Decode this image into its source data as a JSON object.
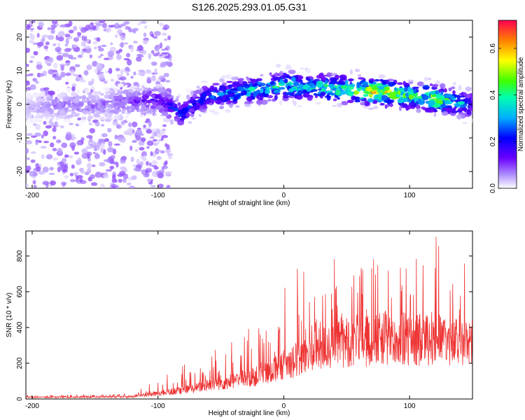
{
  "title": "S126.2025.293.01.05.G31",
  "chart_data": [
    {
      "type": "heatmap",
      "name": "spectrogram",
      "xlabel": "Height of straight line (km)",
      "ylabel": "Frequency (Hz)",
      "xlim": [
        -205,
        150
      ],
      "ylim": [
        -25,
        25
      ],
      "xticks": [
        -200,
        -100,
        0,
        100
      ],
      "yticks": [
        -20,
        -10,
        0,
        10,
        20
      ],
      "colorbar": {
        "label": "Normalized spectral amplitude",
        "range": [
          0.0,
          0.72
        ],
        "ticks": [
          0.0,
          0.2,
          0.4,
          0.6
        ]
      },
      "ridge": {
        "x": [
          -200,
          -180,
          -160,
          -140,
          -120,
          -100,
          -90,
          -80,
          -70,
          -60,
          -50,
          -40,
          -30,
          -20,
          -10,
          0,
          10,
          20,
          30,
          40,
          50,
          60,
          70,
          80,
          90,
          100,
          110,
          120,
          130,
          140,
          150
        ],
        "freq": [
          -1.0,
          -0.5,
          -0.5,
          0.0,
          1.0,
          1.5,
          -1.0,
          -3.0,
          0.5,
          2.5,
          3.0,
          3.5,
          4.0,
          4.5,
          5.0,
          5.5,
          5.5,
          5.0,
          5.0,
          4.5,
          4.5,
          4.0,
          4.0,
          3.5,
          3.0,
          2.5,
          2.5,
          1.5,
          1.0,
          0.5,
          0.0
        ],
        "peak_amplitude": [
          0.05,
          0.1,
          0.1,
          0.1,
          0.15,
          0.2,
          0.25,
          0.3,
          0.25,
          0.3,
          0.35,
          0.4,
          0.4,
          0.45,
          0.45,
          0.5,
          0.5,
          0.45,
          0.5,
          0.55,
          0.55,
          0.6,
          0.7,
          0.7,
          0.6,
          0.55,
          0.5,
          0.65,
          0.5,
          0.4,
          0.3
        ]
      }
    },
    {
      "type": "line",
      "name": "snr",
      "xlabel": "Height of straight line (km)",
      "ylabel": "SNR (10 * v/v)",
      "xlim": [
        -205,
        150
      ],
      "ylim": [
        0,
        940
      ],
      "xticks": [
        -200,
        -100,
        0,
        100
      ],
      "yticks": [
        0,
        200,
        400,
        600,
        800
      ],
      "color": "#ee3333",
      "envelope": {
        "x": [
          -205,
          -180,
          -150,
          -120,
          -110,
          -100,
          -90,
          -80,
          -70,
          -60,
          -50,
          -40,
          -30,
          -20,
          -10,
          0,
          10,
          20,
          30,
          40,
          50,
          60,
          70,
          80,
          90,
          100,
          110,
          120,
          130,
          140,
          150
        ],
        "base": [
          10,
          10,
          12,
          12,
          25,
          30,
          40,
          50,
          60,
          80,
          90,
          100,
          110,
          130,
          150,
          190,
          220,
          250,
          280,
          300,
          320,
          330,
          320,
          340,
          330,
          320,
          330,
          340,
          320,
          310,
          300
        ],
        "peak": [
          20,
          25,
          25,
          30,
          90,
          110,
          150,
          190,
          240,
          280,
          300,
          330,
          390,
          410,
          430,
          630,
          760,
          800,
          780,
          800,
          790,
          780,
          790,
          780,
          790,
          780,
          830,
          920,
          860,
          830,
          780
        ]
      }
    }
  ]
}
